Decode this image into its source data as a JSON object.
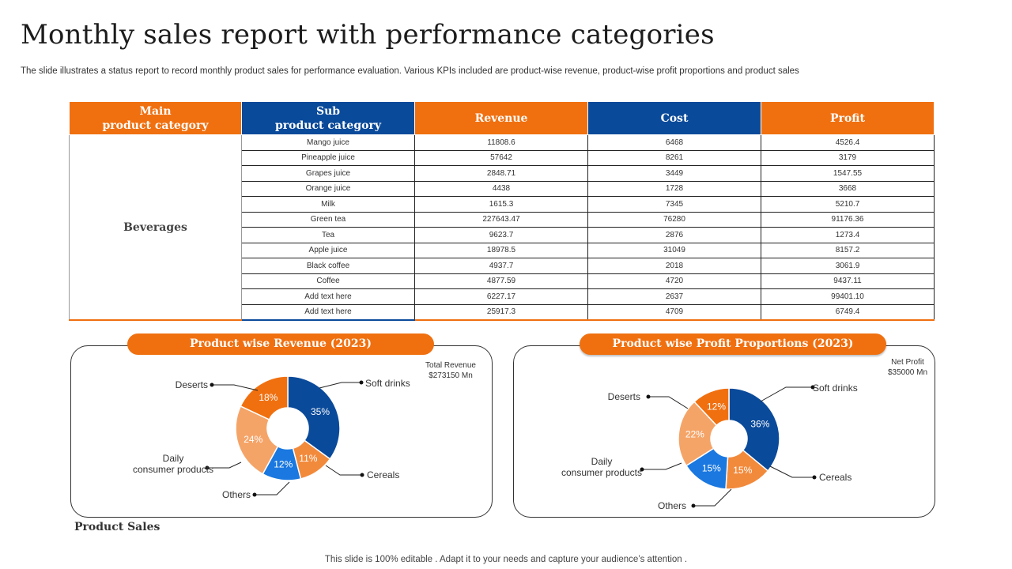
{
  "title": "Monthly sales report with performance categories",
  "subtitle": "The slide illustrates a status report to record monthly product sales for performance evaluation. Various KPIs included are product-wise revenue, product-wise profit proportions and product sales",
  "table": {
    "headers": {
      "main_line1": "Main",
      "main_line2": "product category",
      "sub_line1": "Sub",
      "sub_line2": "product category",
      "revenue": "Revenue",
      "cost": "Cost",
      "profit": "Profit"
    },
    "main_category": "Beverages",
    "rows": [
      {
        "sub": "Mango juice",
        "revenue": "11808.6",
        "cost": "6468",
        "profit": "4526.4"
      },
      {
        "sub": "Pineapple  juice",
        "revenue": "57642",
        "cost": "8261",
        "profit": "3179"
      },
      {
        "sub": "Grapes juice",
        "revenue": "2848.71",
        "cost": "3449",
        "profit": "1547.55"
      },
      {
        "sub": "Orange juice",
        "revenue": "4438",
        "cost": "1728",
        "profit": "3668"
      },
      {
        "sub": "Milk",
        "revenue": "1615.3",
        "cost": "7345",
        "profit": "5210.7"
      },
      {
        "sub": "Green tea",
        "revenue": "227643.47",
        "cost": "76280",
        "profit": "91176.36"
      },
      {
        "sub": "Tea",
        "revenue": "9623.7",
        "cost": "2876",
        "profit": "1273.4"
      },
      {
        "sub": "Apple juice",
        "revenue": "18978.5",
        "cost": "31049",
        "profit": "8157.2"
      },
      {
        "sub": "Black coffee",
        "revenue": "4937.7",
        "cost": "2018",
        "profit": "3061.9"
      },
      {
        "sub": "Coffee",
        "revenue": "4877.59",
        "cost": "4720",
        "profit": "9437.11"
      },
      {
        "sub": "Add text here",
        "revenue": "6227.17",
        "cost": "2637",
        "profit": "99401.10"
      },
      {
        "sub": "Add text here",
        "revenue": "25917.3",
        "cost": "4709",
        "profit": "6749.4"
      }
    ]
  },
  "revenue_panel": {
    "title": "Product wise Revenue (2023)",
    "note_line1": "Total Revenue",
    "note_line2": "$273150 Mn"
  },
  "profit_panel": {
    "title": "Product wise Profit Proportions (2023)",
    "note_line1": "Net Profit",
    "note_line2": "$35000 Mn"
  },
  "product_sales_label": "Product Sales",
  "footer": "This slide is 100% editable . Adapt it to your needs and capture your audience’s attention .",
  "colors": {
    "orange": "#f07010",
    "navy": "#0a4a9a",
    "light_orange": "#f5a468",
    "mid_orange": "#f28a3c",
    "blue": "#1a78e0"
  },
  "chart_data": [
    {
      "type": "pie",
      "title": "Product wise Revenue (2023)",
      "slices": [
        {
          "label": "Soft drinks",
          "value": 35,
          "display": "35%",
          "color": "#0a4a9a"
        },
        {
          "label": "Cereals",
          "value": 11,
          "display": "11%",
          "color": "#f28a3c"
        },
        {
          "label": "Others",
          "value": 12,
          "display": "12%",
          "color": "#1a78e0"
        },
        {
          "label": "Daily consumer products",
          "label_line1": "Daily",
          "label_line2": "consumer products",
          "value": 24,
          "display": "24%",
          "color": "#f5a468"
        },
        {
          "label": "Deserts",
          "value": 18,
          "display": "18%",
          "color": "#f07010"
        }
      ]
    },
    {
      "type": "pie",
      "title": "Product wise Profit Proportions (2023)",
      "slices": [
        {
          "label": "Soft drinks",
          "value": 36,
          "display": "36%",
          "color": "#0a4a9a"
        },
        {
          "label": "Cereals",
          "value": 15,
          "display": "15%",
          "color": "#f28a3c"
        },
        {
          "label": "Others",
          "value": 15,
          "display": "15%",
          "color": "#1a78e0"
        },
        {
          "label": "Daily consumer products",
          "label_line1": "Daily",
          "label_line2": "consumer products",
          "value": 22,
          "display": "22%",
          "color": "#f5a468"
        },
        {
          "label": "Deserts",
          "value": 12,
          "display": "12%",
          "color": "#f07010"
        }
      ]
    }
  ]
}
